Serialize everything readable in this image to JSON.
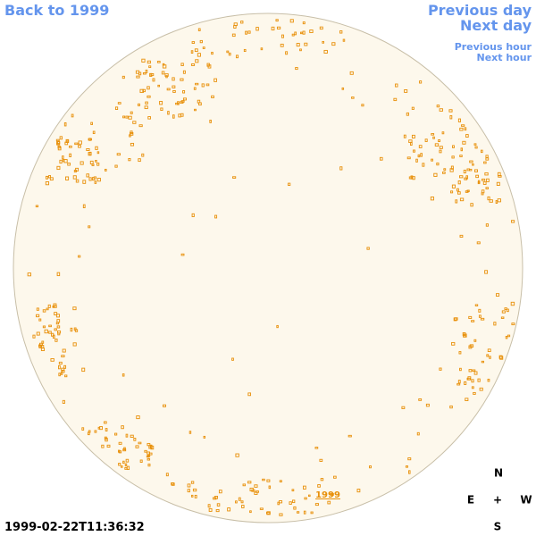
{
  "nav": {
    "back": "Back to 1999",
    "previous_day": "Previous day",
    "next_day": "Next day",
    "previous_hour": "Previous hour",
    "next_hour": "Next hour"
  },
  "image": {
    "year_link": "1999",
    "timestamp": "1999-02-22T11:36:32"
  },
  "compass": {
    "north": "N",
    "east": "E",
    "center": "+",
    "west": "W",
    "south": "S"
  }
}
